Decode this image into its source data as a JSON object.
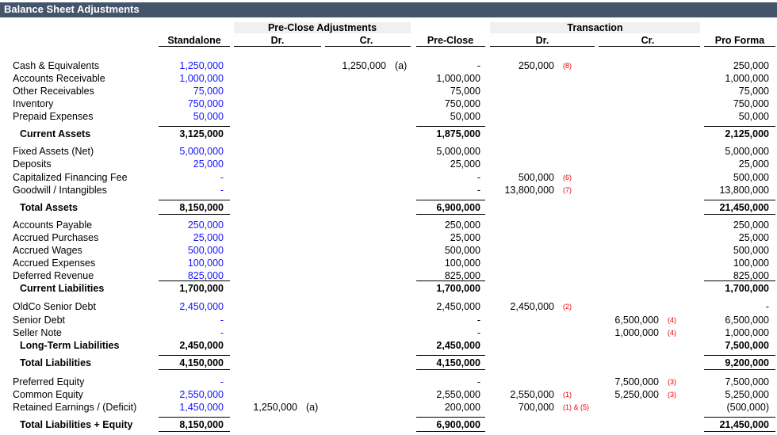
{
  "header": {
    "title": "Balance Sheet Adjustments"
  },
  "column_groups": {
    "pre_close_adjustments": "Pre-Close Adjustments",
    "transaction": "Transaction"
  },
  "columns": {
    "standalone": "Standalone",
    "pc_dr": "Dr.",
    "pc_cr": "Cr.",
    "preclose": "Pre-Close",
    "t_dr": "Dr.",
    "t_cr": "Cr.",
    "proforma": "Pro Forma"
  },
  "rows": [
    {
      "label": "Cash & Equivalents",
      "cells": {
        "standalone": "1,250,000",
        "pc_cr": "1,250,000",
        "pc_cr_note": "(a)",
        "preclose": "-",
        "t_dr": "250,000",
        "t_dr_note": "(8)",
        "proforma": "250,000"
      }
    },
    {
      "label": "Accounts Receivable",
      "cells": {
        "standalone": "1,000,000",
        "preclose": "1,000,000",
        "proforma": "1,000,000"
      }
    },
    {
      "label": "Other Receivables",
      "cells": {
        "standalone": "75,000",
        "preclose": "75,000",
        "proforma": "75,000"
      }
    },
    {
      "label": "Inventory",
      "cells": {
        "standalone": "750,000",
        "preclose": "750,000",
        "proforma": "750,000"
      }
    },
    {
      "label": "Prepaid Expenses",
      "cells": {
        "standalone": "50,000",
        "preclose": "50,000",
        "proforma": "50,000"
      }
    },
    {
      "label": "Current Assets",
      "total": "top",
      "cells": {
        "standalone": "3,125,000",
        "preclose": "1,875,000",
        "proforma": "2,125,000"
      }
    },
    {
      "label": "Fixed Assets (Net)",
      "cells": {
        "standalone": "5,000,000",
        "preclose": "5,000,000",
        "proforma": "5,000,000"
      }
    },
    {
      "label": "Deposits",
      "cells": {
        "standalone": "25,000",
        "preclose": "25,000",
        "proforma": "25,000"
      }
    },
    {
      "label": "Capitalized Financing Fee",
      "cells": {
        "standalone": "-",
        "preclose": "-",
        "t_dr": "500,000",
        "t_dr_note": "(6)",
        "proforma": "500,000"
      }
    },
    {
      "label": "Goodwill / Intangibles",
      "cells": {
        "standalone": "-",
        "preclose": "-",
        "t_dr": "13,800,000",
        "t_dr_note": "(7)",
        "proforma": "13,800,000"
      }
    },
    {
      "label": "Total Assets",
      "total": "both",
      "cells": {
        "standalone": "8,150,000",
        "preclose": "6,900,000",
        "proforma": "21,450,000"
      }
    },
    {
      "label": "Accounts Payable",
      "cells": {
        "standalone": "250,000",
        "preclose": "250,000",
        "proforma": "250,000"
      }
    },
    {
      "label": "Accrued Purchases",
      "cells": {
        "standalone": "25,000",
        "preclose": "25,000",
        "proforma": "25,000"
      }
    },
    {
      "label": "Accrued Wages",
      "cells": {
        "standalone": "500,000",
        "preclose": "500,000",
        "proforma": "500,000"
      }
    },
    {
      "label": "Accrued Expenses",
      "cells": {
        "standalone": "100,000",
        "preclose": "100,000",
        "proforma": "100,000"
      }
    },
    {
      "label": "Deferred Revenue",
      "cells": {
        "standalone": "825,000",
        "preclose": "825,000",
        "proforma": "825,000"
      }
    },
    {
      "label": "Current Liabilities",
      "total": "top",
      "cells": {
        "standalone": "1,700,000",
        "preclose": "1,700,000",
        "proforma": "1,700,000"
      }
    },
    {
      "label": "OldCo Senior Debt",
      "cells": {
        "standalone": "2,450,000",
        "preclose": "2,450,000",
        "t_dr": "2,450,000",
        "t_dr_note": "(2)",
        "proforma": "-"
      }
    },
    {
      "label": "Senior Debt",
      "cells": {
        "standalone": "-",
        "preclose": "-",
        "t_cr": "6,500,000",
        "t_cr_note": "(4)",
        "proforma": "6,500,000"
      }
    },
    {
      "label": "Seller Note",
      "cells": {
        "standalone": "-",
        "preclose": "-",
        "t_cr": "1,000,000",
        "t_cr_note": "(4)",
        "proforma": "1,000,000"
      }
    },
    {
      "label": "Long-Term Liabilities",
      "total": "none",
      "cells": {
        "standalone": "2,450,000",
        "preclose": "2,450,000",
        "proforma": "7,500,000"
      }
    },
    {
      "label": "Total Liabilities",
      "total": "both",
      "cells": {
        "standalone": "4,150,000",
        "preclose": "4,150,000",
        "proforma": "9,200,000"
      }
    },
    {
      "label": "Preferred Equity",
      "cells": {
        "standalone": "-",
        "preclose": "-",
        "t_cr": "7,500,000",
        "t_cr_note": "(3)",
        "proforma": "7,500,000"
      }
    },
    {
      "label": "Common Equity",
      "cells": {
        "standalone": "2,550,000",
        "preclose": "2,550,000",
        "t_dr": "2,550,000",
        "t_dr_note": "(1)",
        "t_cr": "5,250,000",
        "t_cr_note": "(3)",
        "proforma": "5,250,000"
      }
    },
    {
      "label": "Retained Earnings / (Deficit)",
      "cells": {
        "standalone": "1,450,000",
        "pc_dr": "1,250,000",
        "pc_dr_note": "(a)",
        "preclose": "200,000",
        "t_dr": "700,000",
        "t_dr_note": "(1) & (5)",
        "proforma": "(500,000)"
      }
    },
    {
      "label": "Total Liabilities + Equity",
      "total": "both",
      "cells": {
        "standalone": "8,150,000",
        "preclose": "6,900,000",
        "proforma": "21,450,000"
      }
    }
  ]
}
